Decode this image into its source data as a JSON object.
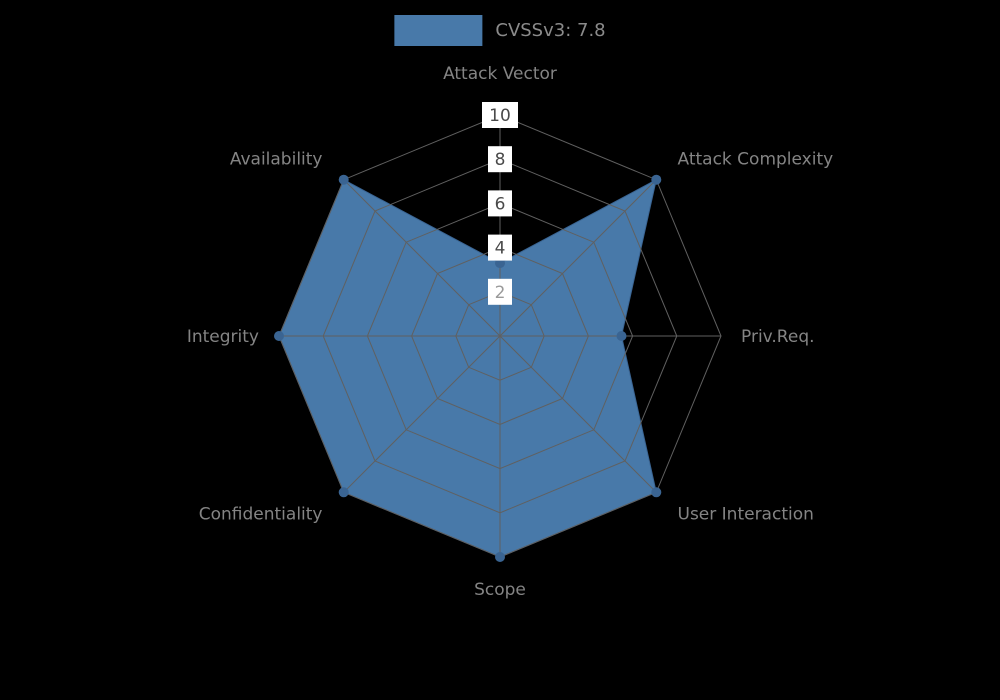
{
  "chart_data": {
    "type": "radar",
    "title": "CVSSv3: 7.8",
    "categories": [
      "Attack Vector",
      "Attack Complexity",
      "Priv.Req.",
      "User Interaction",
      "Scope",
      "Confidentiality",
      "Integrity",
      "Availability"
    ],
    "values": [
      3.3,
      10,
      5.5,
      10,
      10,
      10,
      10,
      10
    ],
    "scale": {
      "min": 0,
      "max": 10,
      "ticks": [
        2,
        4,
        6,
        8,
        10
      ]
    },
    "legend": {
      "label": "CVSSv3: 7.8",
      "position": "top",
      "swatch_color": "#4879a9"
    },
    "layout_hints": {
      "grid": "spider-web",
      "rings": 5,
      "axes": 8
    },
    "colors": {
      "background": "#000000",
      "series": "#4879a9",
      "series_edge": "#3a6492",
      "marker": "#3a6492",
      "grid": "#606060",
      "tick_text": "#4a4a4a",
      "tick_text_low": "#9a9a9a",
      "tick_box_bg": "#ffffff",
      "axis_label": "#848484"
    }
  }
}
